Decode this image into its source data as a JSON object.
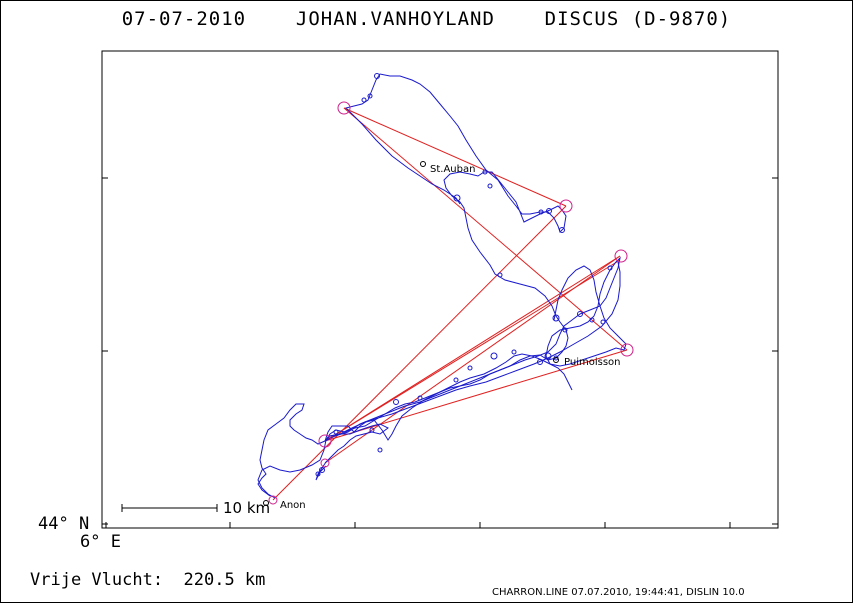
{
  "title": "07-07-2010    JOHAN.VANHOYLAND    DISCUS (D-9870)",
  "axes": {
    "lat_label": "44° N",
    "lon_label": "6° E"
  },
  "scale": {
    "label": "10 km"
  },
  "summary": {
    "label": "Vrije Vlucht:",
    "value": "220.5 km",
    "text": "Vrije Vlucht:  220.5 km"
  },
  "footer": "CHARRON.LINE 07.07.2010, 19:44:41, DISLIN 10.0",
  "towns": [
    {
      "name": "St.Auban"
    },
    {
      "name": "Puimoisson"
    },
    {
      "name": "Anon"
    }
  ],
  "colors": {
    "track": "#1a1acc",
    "task_lines": "#e02020",
    "turnpoints": "#d0208a",
    "frame": "#000000"
  }
}
